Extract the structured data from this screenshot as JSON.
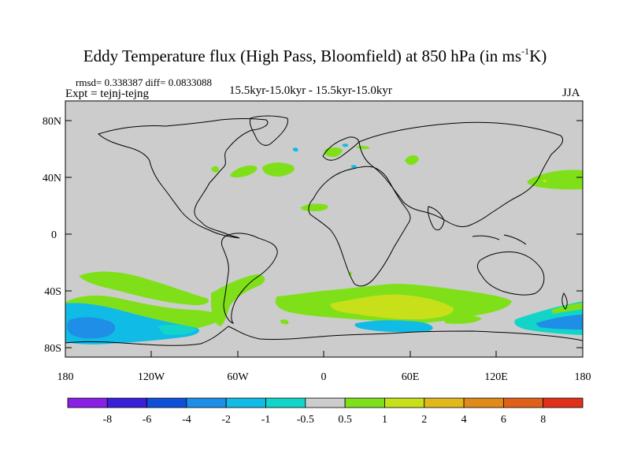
{
  "title_text": "Eddy Temperature flux (High Pass, Bloomfield) at 850 hPa (in ms",
  "title_sup": "-1",
  "title_end": "K)",
  "stats": "rmsd= 0.338387 diff= 0.0833088",
  "expt": "Expt = tejnj-tejng",
  "period": "15.5kyr-15.0kyr - 15.5kyr-15.0kyr",
  "season": "JJA",
  "lat_labels": [
    "80N",
    "40N",
    "0",
    "40S",
    "80S"
  ],
  "lon_labels": [
    "180",
    "120W",
    "60W",
    "0",
    "60E",
    "120E",
    "180"
  ],
  "colorbar": {
    "labels": [
      "-8",
      "-6",
      "-4",
      "-2",
      "-1",
      "-0.5",
      "0.5",
      "1",
      "2",
      "4",
      "6",
      "8"
    ],
    "colors": [
      "#8a1fe6",
      "#3a1fd8",
      "#1050d8",
      "#1e8ee6",
      "#10bce6",
      "#12d4c8",
      "#cccccc",
      "#7fe01a",
      "#c8e01a",
      "#e0b81a",
      "#e08a1a",
      "#e0601a",
      "#e0301a"
    ]
  },
  "colors": {
    "land_sea": "#cccccc",
    "green": "#7fe01a",
    "yellow": "#c8e01a",
    "cyan": "#10bce6",
    "light_blue": "#1e8ee6",
    "turquoise": "#12d4c8"
  }
}
